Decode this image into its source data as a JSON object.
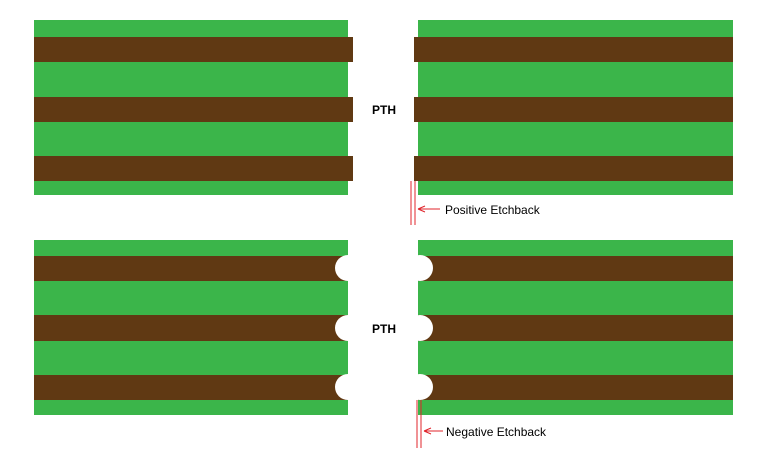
{
  "panels": [
    {
      "label": "PTH",
      "annotation": "Positive Etchback"
    },
    {
      "label": "PTH",
      "annotation": "Negative Etchback"
    }
  ]
}
